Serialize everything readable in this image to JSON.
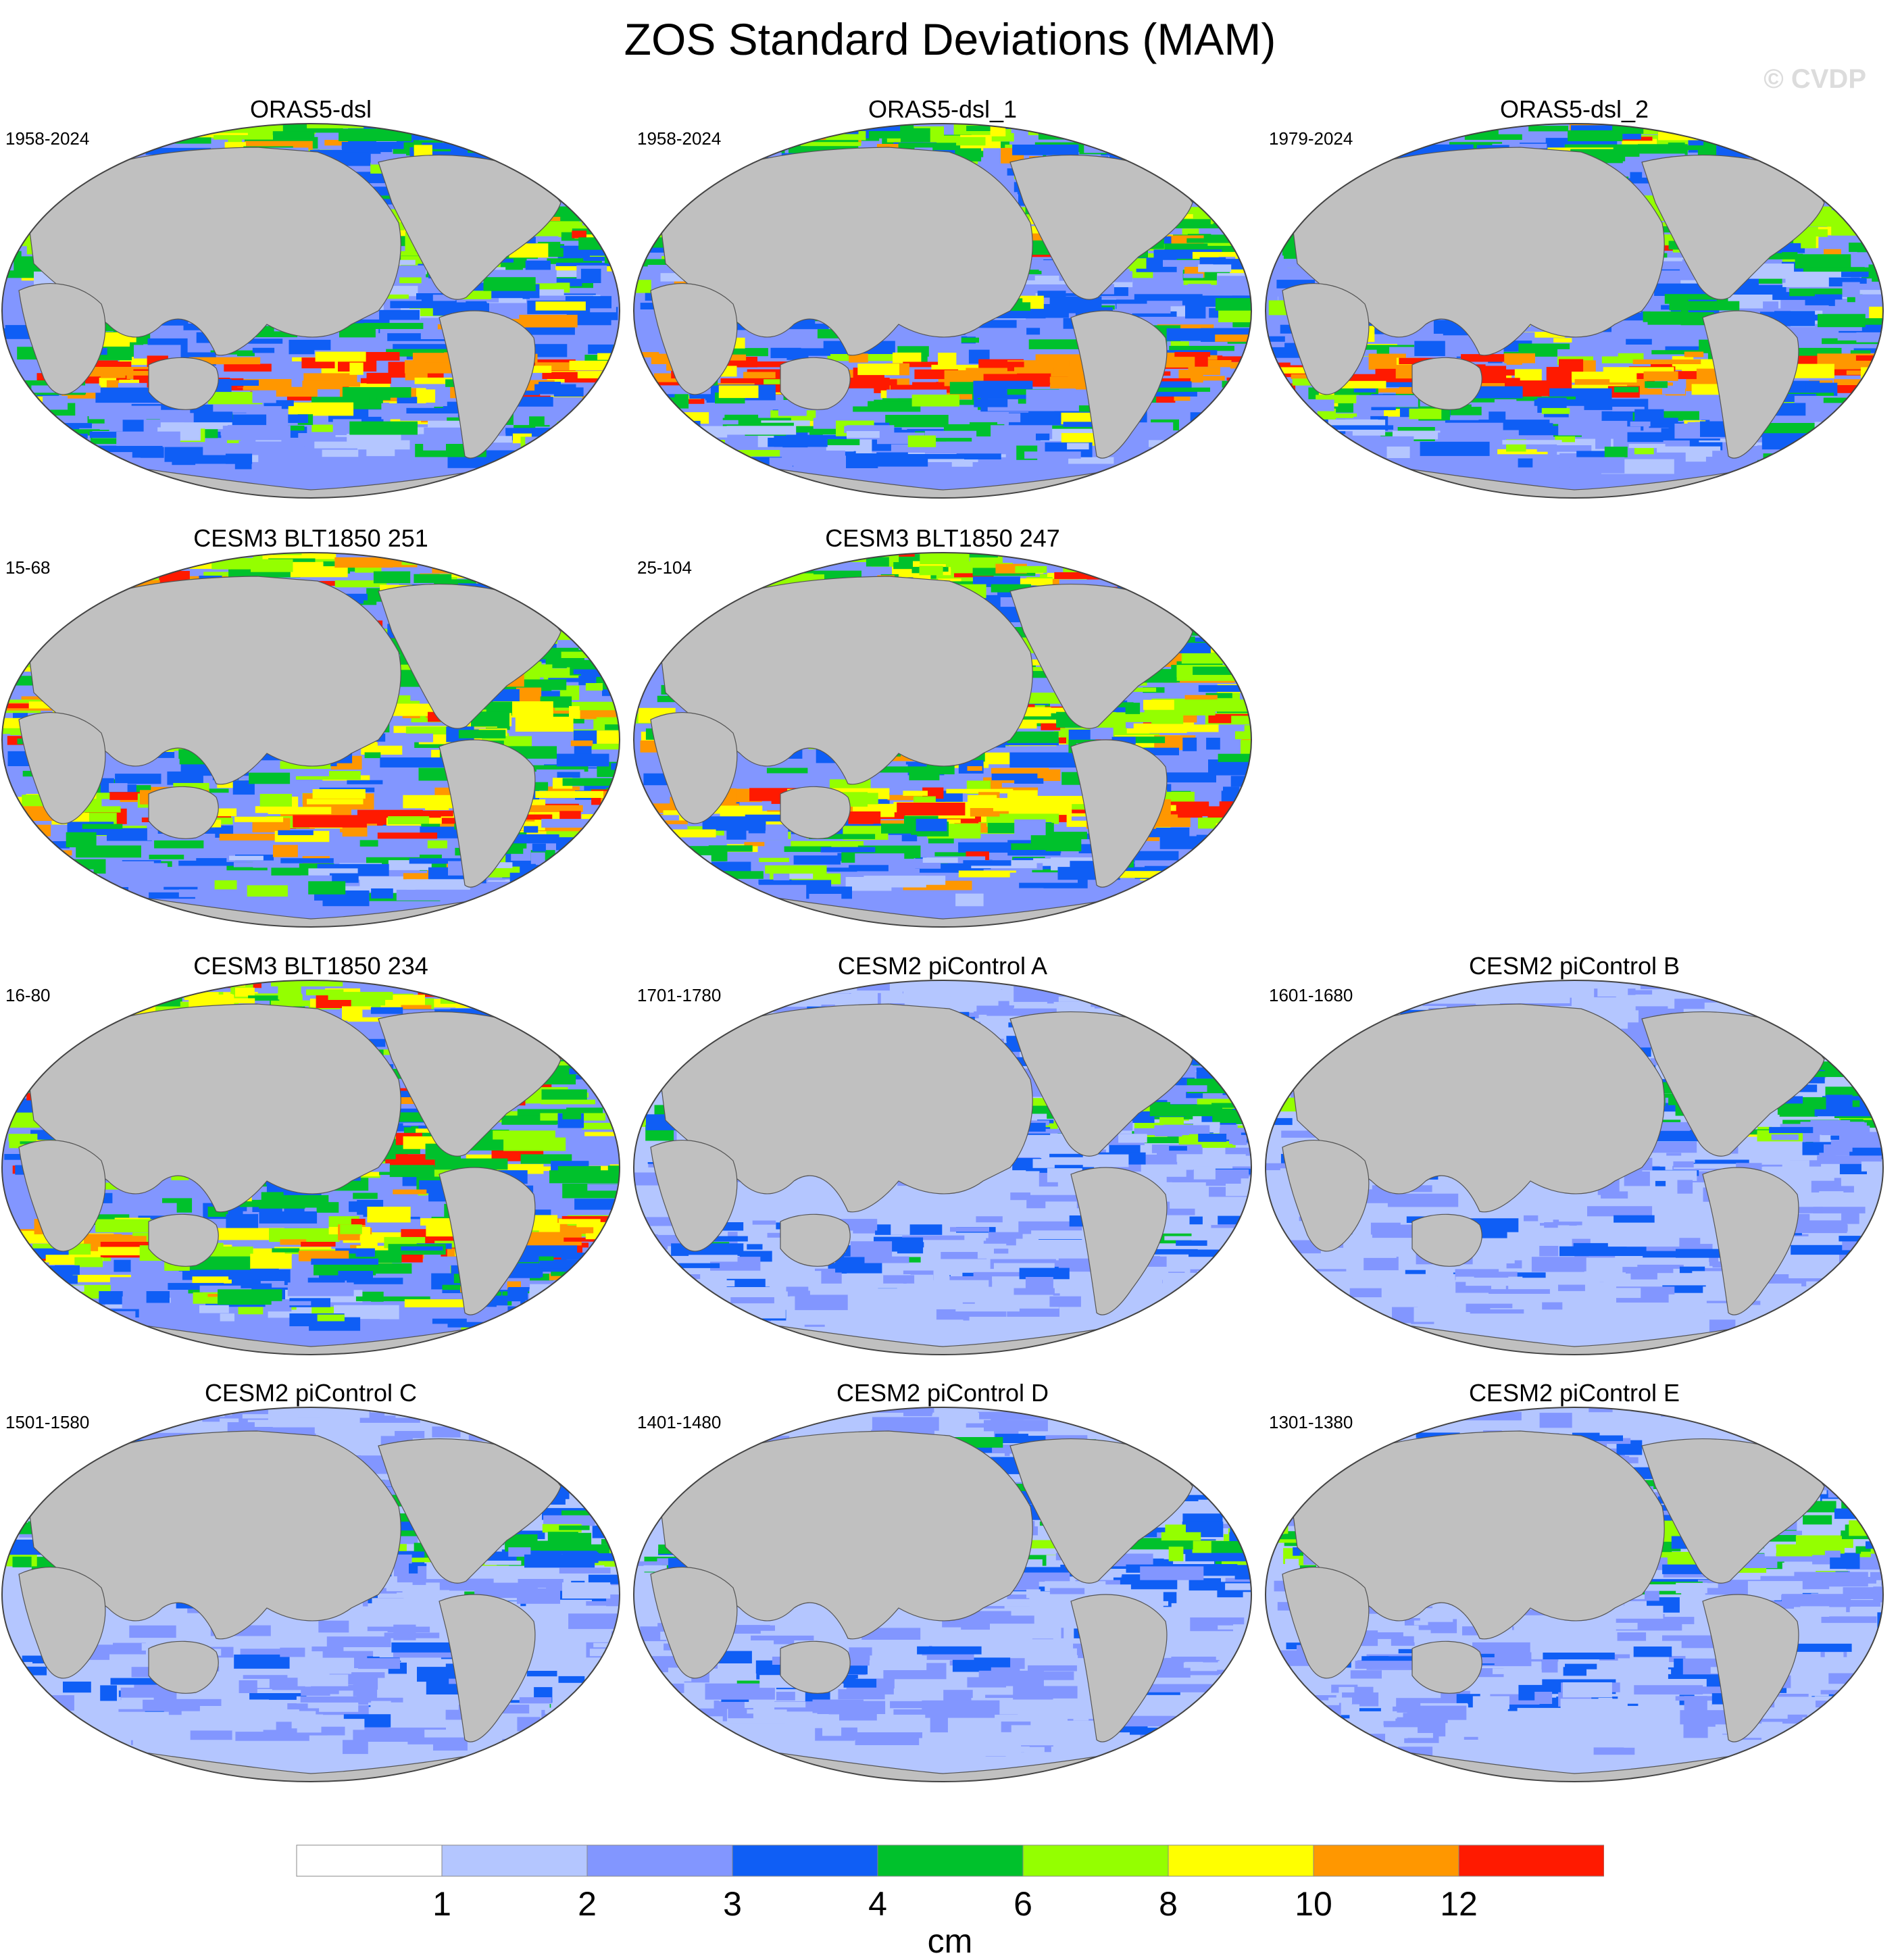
{
  "title": "ZOS Standard Deviations (MAM)",
  "watermark": "© CVDP",
  "chart_data": {
    "type": "heatmap",
    "title": "ZOS Standard Deviations (MAM)",
    "projection": "Robinson, Pacific-centered",
    "colorbar": {
      "levels": [
        1,
        2,
        3,
        4,
        6,
        8,
        10,
        12
      ],
      "level_labels": [
        "1",
        "2",
        "3",
        "4",
        "6",
        "8",
        "10",
        "12"
      ],
      "colors": [
        "#ffffff",
        "#b4c6ff",
        "#8296ff",
        "#0f5ef5",
        "#00c12c",
        "#94ff00",
        "#ffff00",
        "#ff9700",
        "#ff1a00"
      ],
      "unit": "cm"
    },
    "panels": [
      {
        "title": "ORAS5-dsl",
        "years": "1958-2024",
        "variant": "reanalysis",
        "intensity": 3
      },
      {
        "title": "ORAS5-dsl_1",
        "years": "1958-2024",
        "variant": "reanalysis",
        "intensity": 3
      },
      {
        "title": "ORAS5-dsl_2",
        "years": "1979-2024",
        "variant": "reanalysis",
        "intensity": 3
      },
      {
        "title": "CESM3 BLT1850 251",
        "years": "15-68",
        "variant": "cesm3",
        "intensity": 4
      },
      {
        "title": "CESM3 BLT1850 247",
        "years": "25-104",
        "variant": "cesm3",
        "intensity": 4
      },
      {
        "title": "CESM3 BLT1850 234",
        "years": "16-80",
        "variant": "cesm3",
        "intensity": 4
      },
      {
        "title": "CESM2 piControl A",
        "years": "1701-1780",
        "variant": "cesm2",
        "intensity": 1
      },
      {
        "title": "CESM2 piControl B",
        "years": "1601-1680",
        "variant": "cesm2",
        "intensity": 1
      },
      {
        "title": "CESM2 piControl C",
        "years": "1501-1580",
        "variant": "cesm2",
        "intensity": 1
      },
      {
        "title": "CESM2 piControl D",
        "years": "1401-1480",
        "variant": "cesm2",
        "intensity": 1
      },
      {
        "title": "CESM2 piControl E",
        "years": "1301-1380",
        "variant": "cesm2",
        "intensity": 1
      }
    ]
  }
}
